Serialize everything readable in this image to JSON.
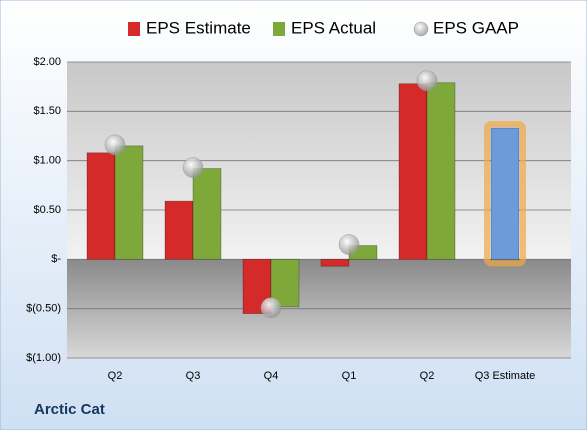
{
  "chart_data": {
    "type": "bar",
    "footer": "Arctic Cat",
    "categories": [
      "Q2",
      "Q3",
      "Q4",
      "Q1",
      "Q2",
      "Q3 Estimate"
    ],
    "series": [
      {
        "name": "EPS Estimate",
        "color": "#d42a2a",
        "values": [
          1.08,
          0.59,
          -0.55,
          -0.07,
          1.78,
          1.33
        ]
      },
      {
        "name": "EPS Actual",
        "color": "#7ea83a",
        "values": [
          1.15,
          0.92,
          -0.48,
          0.14,
          1.79,
          null
        ]
      },
      {
        "name": "EPS GAAP",
        "color": "#a8a8a8",
        "marker": "circle",
        "values": [
          1.16,
          0.93,
          -0.49,
          0.15,
          1.81,
          null
        ]
      }
    ],
    "highlight": {
      "index": 5,
      "color": "#6d9ad8",
      "glow": "#f5a640"
    },
    "ylim": [
      -1,
      2
    ],
    "yticks": [
      {
        "value": -1,
        "label": "$(1.00)"
      },
      {
        "value": -0.5,
        "label": "$(0.50)"
      },
      {
        "value": 0,
        "label": "$-"
      },
      {
        "value": 0.5,
        "label": "$0.50"
      },
      {
        "value": 1,
        "label": "$1.00"
      },
      {
        "value": 1.5,
        "label": "$1.50"
      },
      {
        "value": 2,
        "label": "$2.00"
      }
    ],
    "grid": true
  }
}
